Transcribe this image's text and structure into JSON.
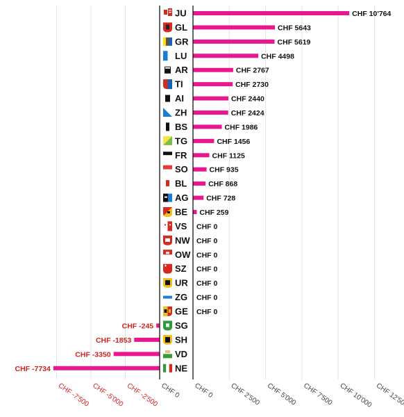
{
  "chart_data": {
    "type": "bar",
    "orientation": "horizontal",
    "title": "",
    "xlabel": "",
    "ylabel": "",
    "currency": "CHF",
    "categories": [
      "JU",
      "GL",
      "GR",
      "LU",
      "AR",
      "TI",
      "AI",
      "ZH",
      "BS",
      "TG",
      "FR",
      "SO",
      "BL",
      "AG",
      "BE",
      "VS",
      "NW",
      "OW",
      "SZ",
      "UR",
      "ZG",
      "GE",
      "SG",
      "SH",
      "VD",
      "NE"
    ],
    "values": [
      10764,
      5643,
      5619,
      4498,
      2767,
      2730,
      2440,
      2424,
      1986,
      1456,
      1125,
      935,
      868,
      728,
      259,
      0,
      0,
      0,
      0,
      0,
      0,
      0,
      -245,
      -1853,
      -3350,
      -7734
    ],
    "value_labels": [
      "CHF 10'764",
      "CHF 5643",
      "CHF 5619",
      "CHF 4498",
      "CHF 2767",
      "CHF 2730",
      "CHF 2440",
      "CHF 2424",
      "CHF 1986",
      "CHF 1456",
      "CHF 1125",
      "CHF 935",
      "CHF 868",
      "CHF 728",
      "CHF 259",
      "CHF 0",
      "CHF 0",
      "CHF 0",
      "CHF 0",
      "CHF 0",
      "CHF 0",
      "CHF 0",
      "CHF -245",
      "CHF -1853",
      "CHF -3350",
      "CHF -7734"
    ],
    "positive_axis": {
      "range": [
        0,
        12500
      ],
      "ticks": [
        0,
        2500,
        5000,
        7500,
        10000,
        12500
      ],
      "tick_labels": [
        "CHF 0",
        "CHF 2'500",
        "CHF 5'000",
        "CHF 7'500",
        "CHF 10'000",
        "CHF 12'500"
      ]
    },
    "negative_axis": {
      "range": [
        -10000,
        0
      ],
      "ticks": [
        -7500,
        -5000,
        -2500,
        0
      ],
      "tick_labels": [
        "CHF -7'500",
        "CHF -5'000",
        "CHF -2'500",
        "CHF 0"
      ]
    },
    "grid": true,
    "bar_color": "#e8178e",
    "negative_text_color": "#d32020"
  }
}
